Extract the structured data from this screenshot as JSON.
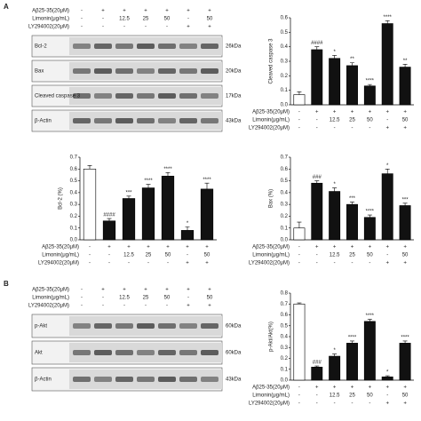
{
  "panel_labels": [
    "A",
    "B"
  ],
  "blots": [
    {
      "conditions": [
        {
          "label": "Aβ25-35(20μM)",
          "values": [
            "-",
            "+",
            "+",
            "+",
            "+",
            "+",
            "+"
          ]
        },
        {
          "label": "Limonin(μg/mL)",
          "values": [
            "-",
            "-",
            "12.5",
            "25",
            "50",
            "-",
            "50"
          ]
        },
        {
          "label": "LY294002(20μM)",
          "values": [
            "-",
            "-",
            "-",
            "-",
            "-",
            "+",
            "+"
          ]
        }
      ],
      "rows": [
        {
          "name": "Bcl-2",
          "size": "26kDa"
        },
        {
          "name": "Bax",
          "size": "20kDa"
        },
        {
          "name": "Cleaved caspase 3",
          "size": "17kDa"
        },
        {
          "name": "β-Actin",
          "size": "43kDa"
        }
      ]
    },
    {
      "conditions": [
        {
          "label": "Aβ25-35(20μM)",
          "values": [
            "-",
            "+",
            "+",
            "+",
            "+",
            "+",
            "+"
          ]
        },
        {
          "label": "Limonin(μg/mL)",
          "values": [
            "-",
            "-",
            "12.5",
            "25",
            "50",
            "-",
            "50"
          ]
        },
        {
          "label": "LY294002(20μM)",
          "values": [
            "-",
            "-",
            "-",
            "-",
            "-",
            "+",
            "+"
          ]
        }
      ],
      "rows": [
        {
          "name": "p-Akt",
          "size": "60kDa"
        },
        {
          "name": "Akt",
          "size": "60kDa"
        },
        {
          "name": "β-Actin",
          "size": "43kDa"
        }
      ]
    }
  ],
  "chart_data": [
    {
      "type": "bar",
      "ylabel": "Cleaved caspase 3",
      "ylim": [
        0,
        0.6
      ],
      "yticks": [
        {
          "value": 0,
          "label": "0.0"
        },
        0.1,
        0.2,
        0.3,
        0.4,
        0.5,
        0.6
      ],
      "values": [
        0.07,
        0.38,
        0.32,
        0.27,
        0.13,
        0.56,
        0.26
      ],
      "errors": [
        0.02,
        0.02,
        0.02,
        0.02,
        0.01,
        0.02,
        0.02
      ],
      "annotations": [
        null,
        "####",
        "*",
        "**",
        "****",
        "****",
        "**"
      ],
      "colors": [
        "#ffffff",
        "#111111",
        "#111111",
        "#111111",
        "#111111",
        "#111111",
        "#111111"
      ],
      "conditions": [
        {
          "label": "Aβ25-35(20μM)",
          "values": [
            "-",
            "+",
            "+",
            "+",
            "+",
            "+",
            "+"
          ]
        },
        {
          "label": "Limonin(μg/mL)",
          "values": [
            "-",
            "-",
            "12.5",
            "25",
            "50",
            "-",
            "50"
          ]
        },
        {
          "label": "LY294002(20μM)",
          "values": [
            "-",
            "-",
            "-",
            "-",
            "-",
            "+",
            "+"
          ]
        }
      ]
    },
    {
      "type": "bar",
      "ylabel": "Bcl-2 (%)",
      "ylim": [
        0,
        0.7
      ],
      "yticks": [
        {
          "value": 0,
          "label": "0.0"
        },
        0.1,
        0.2,
        0.3,
        0.4,
        0.5,
        0.6,
        0.7
      ],
      "values": [
        0.6,
        0.16,
        0.35,
        0.44,
        0.54,
        0.08,
        0.43
      ],
      "errors": [
        0.03,
        0.02,
        0.02,
        0.03,
        0.03,
        0.03,
        0.05
      ],
      "annotations": [
        null,
        "####",
        "***",
        "****",
        "****",
        "*",
        "****"
      ],
      "colors": [
        "#ffffff",
        "#111111",
        "#111111",
        "#111111",
        "#111111",
        "#111111",
        "#111111"
      ],
      "conditions": [
        {
          "label": "Aβ25-35(20μM)",
          "values": [
            "-",
            "+",
            "+",
            "+",
            "+",
            "+",
            "+"
          ]
        },
        {
          "label": "Limonin(μg/mL)",
          "values": [
            "-",
            "-",
            "12.5",
            "25",
            "50",
            "-",
            "50"
          ]
        },
        {
          "label": "LY294002(20μM)",
          "values": [
            "-",
            "-",
            "-",
            "-",
            "-",
            "+",
            "+"
          ]
        }
      ]
    },
    {
      "type": "bar",
      "ylabel": "Bax (%)",
      "ylim": [
        0,
        0.7
      ],
      "yticks": [
        {
          "value": 0,
          "label": "0.0"
        },
        0.1,
        0.2,
        0.3,
        0.4,
        0.5,
        0.6,
        0.7
      ],
      "values": [
        0.1,
        0.48,
        0.41,
        0.3,
        0.19,
        0.56,
        0.29
      ],
      "errors": [
        0.05,
        0.02,
        0.03,
        0.02,
        0.02,
        0.04,
        0.02
      ],
      "annotations": [
        null,
        "###",
        "*",
        "***",
        "****",
        "*",
        "***"
      ],
      "colors": [
        "#ffffff",
        "#111111",
        "#111111",
        "#111111",
        "#111111",
        "#111111",
        "#111111"
      ],
      "conditions": [
        {
          "label": "Aβ25-35(20μM)",
          "values": [
            "-",
            "+",
            "+",
            "+",
            "+",
            "+",
            "+"
          ]
        },
        {
          "label": "Limonin(μg/mL)",
          "values": [
            "-",
            "-",
            "12.5",
            "25",
            "50",
            "-",
            "50"
          ]
        },
        {
          "label": "LY294002(20μM)",
          "values": [
            "-",
            "-",
            "-",
            "-",
            "-",
            "+",
            "+"
          ]
        }
      ]
    },
    {
      "type": "bar",
      "ylabel": "p-Akt/Akt(%)",
      "ylim": [
        0,
        0.8
      ],
      "yticks": [
        {
          "value": 0,
          "label": "0.0"
        },
        0.1,
        0.2,
        0.3,
        0.4,
        0.5,
        0.6,
        0.7,
        0.8
      ],
      "values": [
        0.7,
        0.12,
        0.22,
        0.34,
        0.54,
        0.03,
        0.34
      ],
      "errors": [
        0.01,
        0.01,
        0.02,
        0.02,
        0.02,
        0.01,
        0.02
      ],
      "annotations": [
        null,
        "###",
        "*",
        "****",
        "****",
        "*",
        "****"
      ],
      "colors": [
        "#ffffff",
        "#111111",
        "#111111",
        "#111111",
        "#111111",
        "#111111",
        "#111111"
      ],
      "conditions": [
        {
          "label": "Aβ25-35(20μM)",
          "values": [
            "-",
            "+",
            "+",
            "+",
            "+",
            "+",
            "+"
          ]
        },
        {
          "label": "Limonin(μg/mL)",
          "values": [
            "-",
            "-",
            "12.5",
            "25",
            "50",
            "-",
            "50"
          ]
        },
        {
          "label": "LY294002(20μM)",
          "values": [
            "-",
            "-",
            "-",
            "-",
            "-",
            "+",
            "+"
          ]
        }
      ]
    }
  ]
}
